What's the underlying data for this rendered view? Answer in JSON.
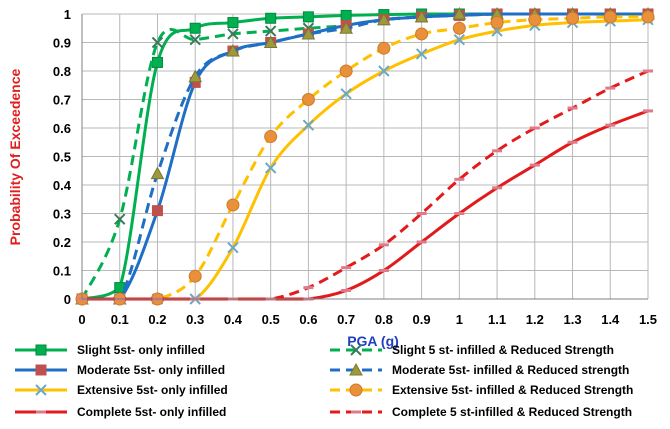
{
  "chart_data": {
    "type": "line",
    "xlabel": "PGA (g)",
    "ylabel": "Probability Of Exceedence",
    "xlim": [
      0,
      1.5
    ],
    "ylim": [
      0,
      1
    ],
    "x_ticks": [
      "0",
      "0.1",
      "0.2",
      "0.3",
      "0.4",
      "0.5",
      "0.6",
      "0.7",
      "0.8",
      "0.9",
      "1",
      "1.1",
      "1.2",
      "1.3",
      "1.4",
      "1.5"
    ],
    "y_ticks": [
      "0",
      "0.1",
      "0.2",
      "0.3",
      "0.4",
      "0.5",
      "0.6",
      "0.7",
      "0.8",
      "0.9",
      "1"
    ],
    "grid": true,
    "legend_placement": "bottom",
    "x": [
      0,
      0.1,
      0.2,
      0.3,
      0.4,
      0.5,
      0.6,
      0.7,
      0.8,
      0.9,
      1.0,
      1.1,
      1.2,
      1.3,
      1.4,
      1.5
    ],
    "series": [
      {
        "name": "Slight 5st- only infilled",
        "color": "#00b050",
        "dash": false,
        "marker": "square",
        "values": [
          0,
          0.04,
          0.83,
          0.95,
          0.97,
          0.985,
          0.99,
          0.995,
          0.998,
          1,
          1,
          1,
          1,
          1,
          1,
          1
        ]
      },
      {
        "name": "Slight 5 st- infilled & Reduced Strength",
        "color": "#00b050",
        "dash": true,
        "marker": "x",
        "values": [
          0,
          0.28,
          0.9,
          0.91,
          0.93,
          0.94,
          0.95,
          0.96,
          0.98,
          0.99,
          0.995,
          1,
          1,
          1,
          1,
          1
        ]
      },
      {
        "name": "Moderate 5st- only infilled",
        "color": "#1f6fc5",
        "dash": false,
        "marker": "square",
        "values": [
          0,
          0,
          0.31,
          0.76,
          0.87,
          0.9,
          0.93,
          0.96,
          0.98,
          0.99,
          0.995,
          1,
          1,
          1,
          1,
          1
        ]
      },
      {
        "name": "Moderate 5st- infilled & Reduced strength",
        "color": "#1f6fc5",
        "dash": true,
        "marker": "triangle",
        "values": [
          0,
          0,
          0.44,
          0.78,
          0.87,
          0.9,
          0.93,
          0.95,
          0.98,
          0.99,
          1,
          1,
          1,
          1,
          1,
          1
        ]
      },
      {
        "name": "Extensive 5st- only infilled",
        "color": "#ffc000",
        "dash": false,
        "marker": "x",
        "values": [
          0,
          0,
          0,
          0,
          0.18,
          0.46,
          0.61,
          0.72,
          0.8,
          0.86,
          0.91,
          0.94,
          0.96,
          0.97,
          0.975,
          0.98
        ]
      },
      {
        "name": "Extensive 5st- infilled & Reduced Strength",
        "color": "#ffc000",
        "dash": true,
        "marker": "circle",
        "values": [
          0,
          0,
          0,
          0.08,
          0.33,
          0.57,
          0.7,
          0.8,
          0.88,
          0.93,
          0.95,
          0.97,
          0.98,
          0.985,
          0.99,
          0.99
        ]
      },
      {
        "name": "Complete 5st- only infilled",
        "color": "#e31a1c",
        "dash": false,
        "marker": "dash",
        "values": [
          0,
          0,
          0,
          0,
          0,
          0,
          0,
          0.03,
          0.1,
          0.2,
          0.3,
          0.39,
          0.47,
          0.55,
          0.61,
          0.66
        ]
      },
      {
        "name": "Complete 5 st-infilled & Reduced Strength",
        "color": "#e31a1c",
        "dash": true,
        "marker": "dash",
        "values": [
          0,
          0,
          0,
          0,
          0,
          0,
          0.04,
          0.11,
          0.19,
          0.3,
          0.42,
          0.52,
          0.6,
          0.67,
          0.74,
          0.8
        ]
      }
    ]
  }
}
